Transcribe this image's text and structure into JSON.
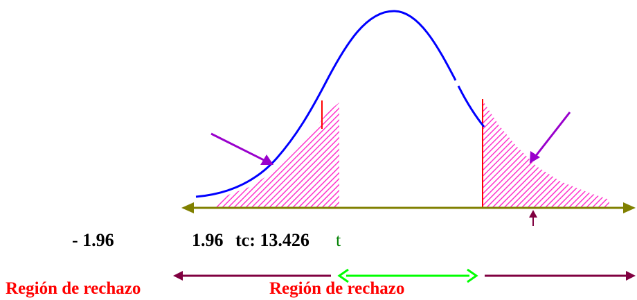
{
  "colors": {
    "curve": "#0000ff",
    "axis": "#808000",
    "critical_line": "#ff0000",
    "hatch": "#ff33cc",
    "pointer_arrow": "#9900cc",
    "marker_arrow": "#800040",
    "region_arrow": "#800040",
    "accept_arrow": "#00ff00",
    "region_text": "#ff0000",
    "t_symbol": "#008000"
  },
  "labels": {
    "neg_critical": "- 1.96",
    "pos_critical": "1.96",
    "tc_label": "tc: 13.426",
    "t_symbol": "t",
    "region_left": "Región de rechazo",
    "region_right": "Región de rechazo"
  }
}
